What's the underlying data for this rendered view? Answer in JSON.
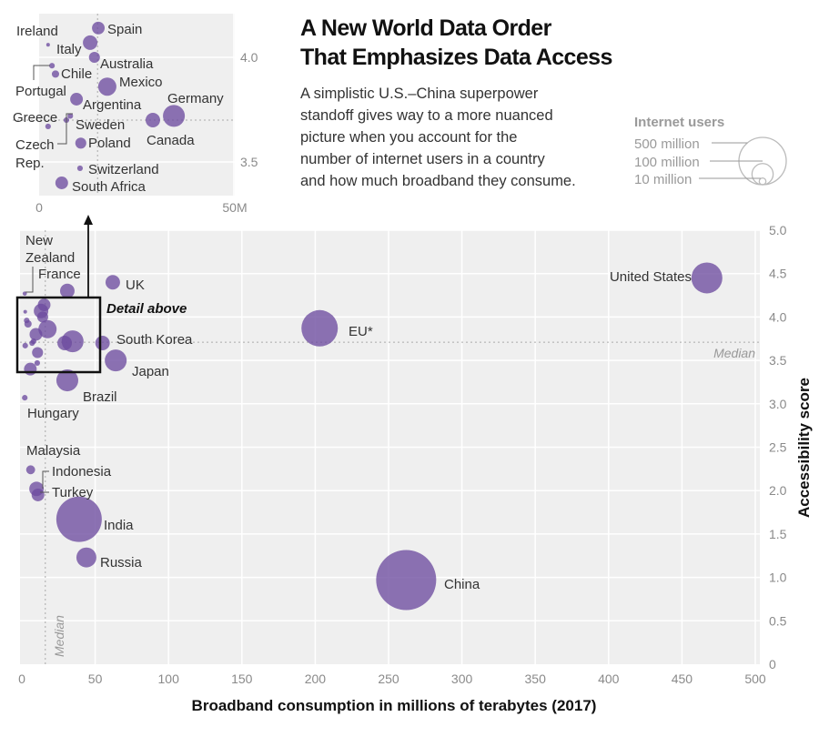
{
  "header": {
    "title_line1": "A New World Data Order",
    "title_line2": "That Emphasizes Data Access",
    "body_lines": [
      "A simplistic U.S.–China superpower",
      "standoff gives way to a more nuanced",
      "picture when you account for the",
      "number of internet users in a country",
      "and how much broadband they consume."
    ]
  },
  "legend": {
    "title": "Internet users",
    "items": [
      {
        "label": "500 million",
        "value": 500
      },
      {
        "label": "100 million",
        "value": 100
      },
      {
        "label": "10 million",
        "value": 10
      }
    ]
  },
  "colors": {
    "bubble": "#6d4c9f",
    "plot_bg": "#efefef",
    "grid": "#ffffff"
  },
  "chart_data": [
    {
      "type": "scatter",
      "subtype": "bubble",
      "xlabel": "Broadband consumption in millions of terabytes (2017)",
      "ylabel": "Accessibility score",
      "xlim": [
        0,
        500
      ],
      "ylim": [
        0,
        5
      ],
      "x_ticks": [
        "0",
        "50",
        "100",
        "150",
        "200",
        "250",
        "300",
        "350",
        "400",
        "450",
        "500"
      ],
      "y_ticks": [
        "0",
        "0.5",
        "1.0",
        "1.5",
        "2.0",
        "2.5",
        "3.0",
        "3.5",
        "4.0",
        "4.5",
        "5.0"
      ],
      "grid": true,
      "size_variable": "Internet users (millions)",
      "median": {
        "label": "Median",
        "x": 16,
        "y": 3.71
      },
      "detail_label": "Detail above",
      "points": [
        {
          "name": "United States",
          "x": 467,
          "y": 4.45,
          "users": 214
        },
        {
          "name": "EU*",
          "x": 203,
          "y": 3.87,
          "users": 296
        },
        {
          "name": "China",
          "x": 262,
          "y": 0.97,
          "users": 805
        },
        {
          "name": "India",
          "x": 39,
          "y": 1.67,
          "users": 462
        },
        {
          "name": "Russia",
          "x": 44,
          "y": 1.23,
          "users": 89
        },
        {
          "name": "Japan",
          "x": 64,
          "y": 3.5,
          "users": 107
        },
        {
          "name": "Brazil",
          "x": 31,
          "y": 3.27,
          "users": 107
        },
        {
          "name": "South Korea",
          "x": 55,
          "y": 3.7,
          "users": 47
        },
        {
          "name": "UK",
          "x": 62,
          "y": 4.4,
          "users": 47
        },
        {
          "name": "France",
          "x": 31,
          "y": 4.3,
          "users": 47
        },
        {
          "name": "New Zealand",
          "x": 2,
          "y": 4.27,
          "users": 4
        },
        {
          "name": "Hungary",
          "x": 2,
          "y": 3.07,
          "users": 7
        },
        {
          "name": "Malaysia",
          "x": 6,
          "y": 2.24,
          "users": 18
        },
        {
          "name": "Indonesia",
          "x": 10,
          "y": 2.02,
          "users": 47
        },
        {
          "name": "Turkey",
          "x": 11,
          "y": 1.95,
          "users": 36
        }
      ]
    },
    {
      "type": "scatter",
      "subtype": "bubble",
      "title": "",
      "xlim": [
        0,
        50
      ],
      "ylim": [
        3.34,
        4.21
      ],
      "x_ticks": [
        "0",
        "50M"
      ],
      "y_ticks": [
        "3.5",
        "4.0"
      ],
      "median": {
        "x": 15,
        "y": 3.7
      },
      "points": [
        {
          "name": "Spain",
          "x": 15.2,
          "y": 4.14,
          "users": 36
        },
        {
          "name": "Italy",
          "x": 13.1,
          "y": 4.07,
          "users": 47
        },
        {
          "name": "Ireland",
          "x": 2.3,
          "y": 4.06,
          "users": 3
        },
        {
          "name": "Australia",
          "x": 14.2,
          "y": 4.0,
          "users": 27
        },
        {
          "name": "Portugal",
          "x": 3.3,
          "y": 3.96,
          "users": 7
        },
        {
          "name": "Chile",
          "x": 4.2,
          "y": 3.92,
          "users": 12
        },
        {
          "name": "Mexico",
          "x": 17.5,
          "y": 3.86,
          "users": 74
        },
        {
          "name": "Argentina",
          "x": 9.6,
          "y": 3.8,
          "users": 36
        },
        {
          "name": "Greece",
          "x": 8,
          "y": 3.72,
          "users": 7
        },
        {
          "name": "Sweden",
          "x": 7,
          "y": 3.7,
          "users": 7
        },
        {
          "name": "Czech Rep.",
          "x": 2.3,
          "y": 3.67,
          "users": 7
        },
        {
          "name": "Poland",
          "x": 10.7,
          "y": 3.59,
          "users": 27
        },
        {
          "name": "Canada",
          "x": 29.2,
          "y": 3.7,
          "users": 47
        },
        {
          "name": "Germany",
          "x": 34.6,
          "y": 3.72,
          "users": 107
        },
        {
          "name": "Switzerland",
          "x": 10.5,
          "y": 3.47,
          "users": 7
        },
        {
          "name": "South Africa",
          "x": 5.8,
          "y": 3.4,
          "users": 36
        }
      ]
    }
  ]
}
